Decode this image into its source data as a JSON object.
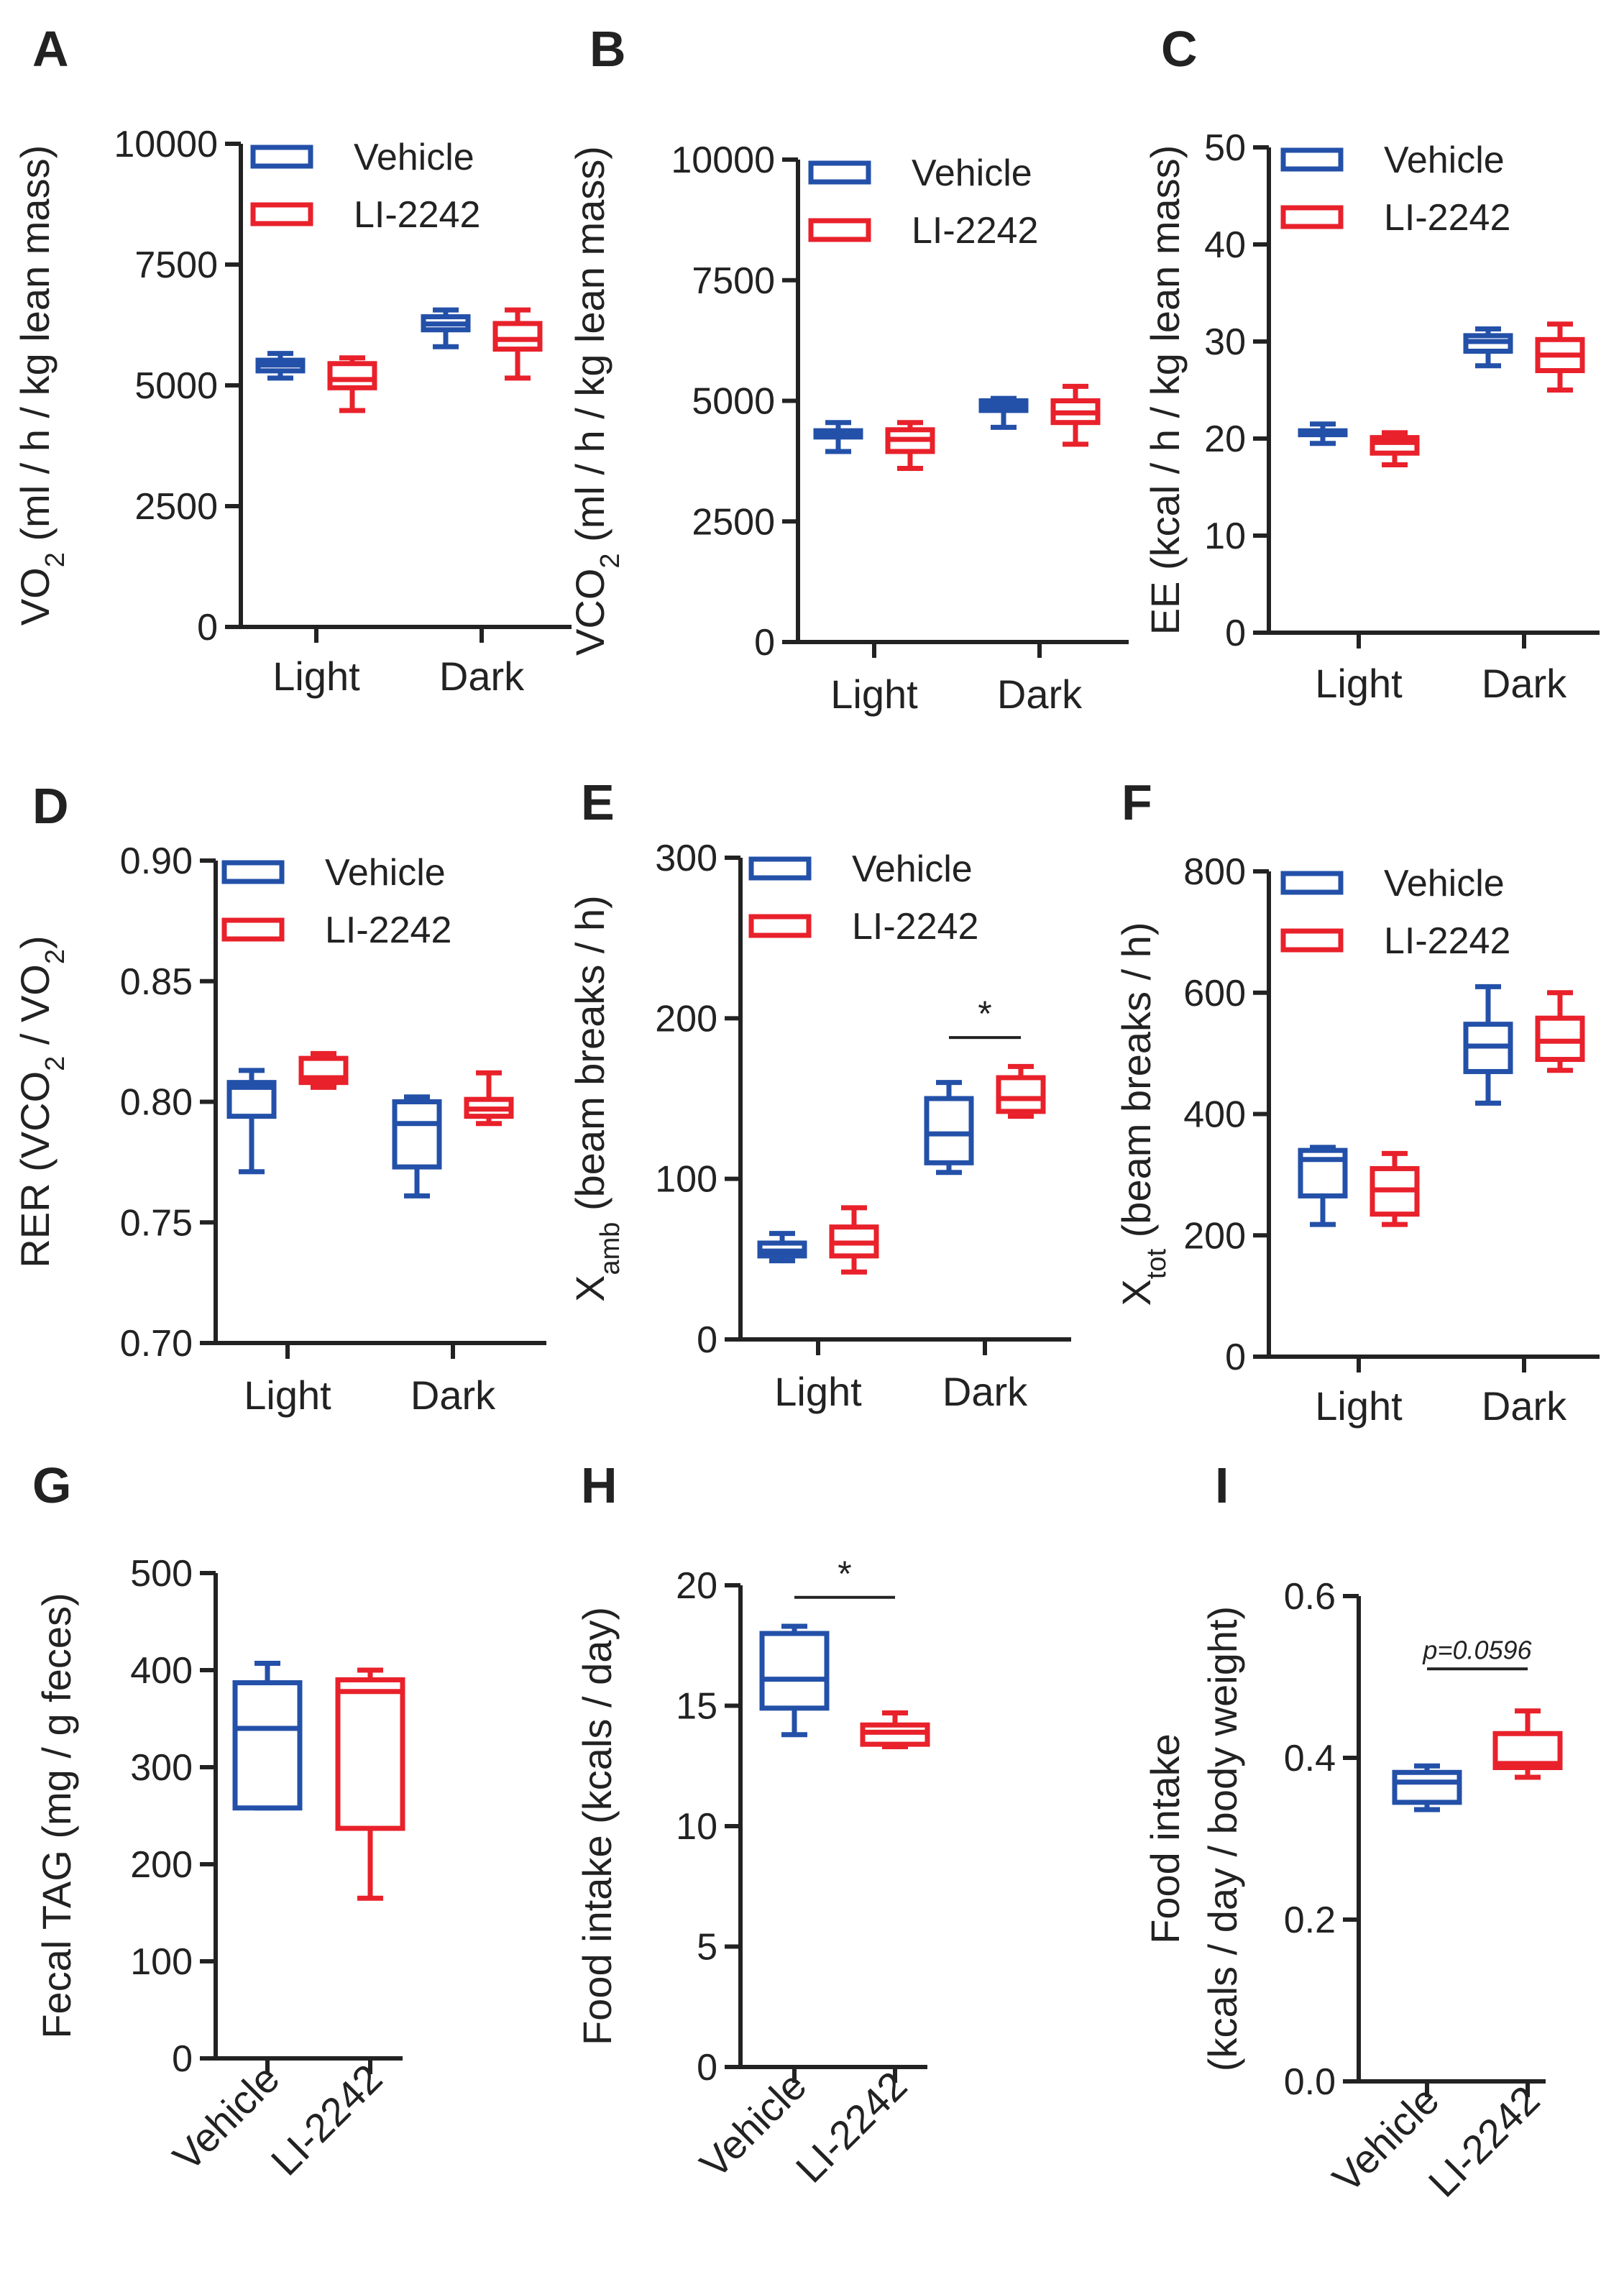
{
  "colors": {
    "vehicle": "#2350A8",
    "li2242": "#E8212B",
    "axis": "#222222"
  },
  "chart_data": [
    {
      "panel": "A",
      "type": "box",
      "ylabel": "VO",
      "ylabel_sub": "2",
      "ylabel_rest": " (ml / h / kg lean mass)",
      "ylim": [
        0,
        10000
      ],
      "yticks": [
        0,
        2500,
        5000,
        7500,
        10000
      ],
      "categories": [
        "Light",
        "Dark"
      ],
      "legend": [
        "Vehicle",
        "LI-2242"
      ],
      "series": [
        {
          "name": "Vehicle",
          "color": "#2350A8",
          "boxes": [
            {
              "min": 5150,
              "q1": 5300,
              "median": 5420,
              "q3": 5520,
              "max": 5660
            },
            {
              "min": 5800,
              "q1": 6150,
              "median": 6270,
              "q3": 6420,
              "max": 6560
            }
          ]
        },
        {
          "name": "LI-2242",
          "color": "#E8212B",
          "boxes": [
            {
              "min": 4480,
              "q1": 4950,
              "median": 5120,
              "q3": 5450,
              "max": 5570
            },
            {
              "min": 5150,
              "q1": 5750,
              "median": 5950,
              "q3": 6280,
              "max": 6560
            }
          ]
        }
      ]
    },
    {
      "panel": "B",
      "type": "box",
      "ylabel": "VCO",
      "ylabel_sub": "2",
      "ylabel_rest": " (ml / h / kg lean mass)",
      "ylim": [
        0,
        10000
      ],
      "yticks": [
        0,
        2500,
        5000,
        7500,
        10000
      ],
      "categories": [
        "Light",
        "Dark"
      ],
      "legend": [
        "Vehicle",
        "LI-2242"
      ],
      "series": [
        {
          "name": "Vehicle",
          "color": "#2350A8",
          "boxes": [
            {
              "min": 3950,
              "q1": 4250,
              "median": 4300,
              "q3": 4380,
              "max": 4550
            },
            {
              "min": 4450,
              "q1": 4800,
              "median": 4900,
              "q3": 5000,
              "max": 5050
            }
          ]
        },
        {
          "name": "LI-2242",
          "color": "#E8212B",
          "boxes": [
            {
              "min": 3600,
              "q1": 3950,
              "median": 4200,
              "q3": 4400,
              "max": 4550
            },
            {
              "min": 4100,
              "q1": 4550,
              "median": 4750,
              "q3": 5000,
              "max": 5300
            }
          ]
        }
      ]
    },
    {
      "panel": "C",
      "type": "box",
      "ylabel": "EE (kcal / h / kg lean mass)",
      "ylim": [
        0,
        50
      ],
      "yticks": [
        0,
        10,
        20,
        30,
        40,
        50
      ],
      "categories": [
        "Light",
        "Dark"
      ],
      "legend": [
        "Vehicle",
        "LI-2242"
      ],
      "series": [
        {
          "name": "Vehicle",
          "color": "#2350A8",
          "boxes": [
            {
              "min": 19.5,
              "q1": 20.4,
              "median": 20.6,
              "q3": 20.8,
              "max": 21.5
            },
            {
              "min": 27.5,
              "q1": 29.0,
              "median": 30.0,
              "q3": 30.6,
              "max": 31.3
            }
          ]
        },
        {
          "name": "LI-2242",
          "color": "#E8212B",
          "boxes": [
            {
              "min": 17.3,
              "q1": 18.5,
              "median": 19.6,
              "q3": 20.1,
              "max": 20.6
            },
            {
              "min": 25.0,
              "q1": 27.0,
              "median": 28.6,
              "q3": 30.2,
              "max": 31.8
            }
          ]
        }
      ]
    },
    {
      "panel": "D",
      "type": "box",
      "ylabel_pre": "RER (VCO",
      "ylabel_sub": "2",
      "ylabel_mid": " / VO",
      "ylabel_sub2": "2",
      "ylabel_end": ")",
      "ylim": [
        0.7,
        0.9
      ],
      "yticks": [
        0.7,
        0.75,
        0.8,
        0.85,
        0.9
      ],
      "ytick_labels": [
        "0.70",
        "0.75",
        "0.80",
        "0.85",
        "0.90"
      ],
      "categories": [
        "Light",
        "Dark"
      ],
      "legend": [
        "Vehicle",
        "LI-2242"
      ],
      "series": [
        {
          "name": "Vehicle",
          "color": "#2350A8",
          "boxes": [
            {
              "min": 0.771,
              "q1": 0.794,
              "median": 0.806,
              "q3": 0.808,
              "max": 0.813
            },
            {
              "min": 0.761,
              "q1": 0.773,
              "median": 0.791,
              "q3": 0.8,
              "max": 0.802
            }
          ]
        },
        {
          "name": "LI-2242",
          "color": "#E8212B",
          "boxes": [
            {
              "min": 0.806,
              "q1": 0.808,
              "median": 0.81,
              "q3": 0.818,
              "max": 0.82
            },
            {
              "min": 0.791,
              "q1": 0.794,
              "median": 0.797,
              "q3": 0.801,
              "max": 0.812
            }
          ]
        }
      ]
    },
    {
      "panel": "E",
      "type": "box",
      "ylabel_pre": "X",
      "ylabel_sub": "amb",
      "ylabel_rest": " (beam breaks / h)",
      "ylim": [
        0,
        300
      ],
      "yticks": [
        0,
        100,
        200,
        300
      ],
      "categories": [
        "Light",
        "Dark"
      ],
      "legend": [
        "Vehicle",
        "LI-2242"
      ],
      "significance": [
        {
          "label": "*",
          "category": "Dark",
          "y": 188
        }
      ],
      "series": [
        {
          "name": "Vehicle",
          "color": "#2350A8",
          "boxes": [
            {
              "min": 49,
              "q1": 52,
              "median": 55,
              "q3": 60,
              "max": 66
            },
            {
              "min": 104,
              "q1": 110,
              "median": 128,
              "q3": 150,
              "max": 160
            }
          ]
        },
        {
          "name": "LI-2242",
          "color": "#E8212B",
          "boxes": [
            {
              "min": 42,
              "q1": 52,
              "median": 60,
              "q3": 70,
              "max": 82
            },
            {
              "min": 139,
              "q1": 142,
              "median": 150,
              "q3": 163,
              "max": 170
            }
          ]
        }
      ]
    },
    {
      "panel": "F",
      "type": "box",
      "ylabel_pre": "X",
      "ylabel_sub": "tot",
      "ylabel_rest": " (beam breaks / h)",
      "ylim": [
        0,
        800
      ],
      "yticks": [
        0,
        200,
        400,
        600,
        800
      ],
      "categories": [
        "Light",
        "Dark"
      ],
      "legend": [
        "Vehicle",
        "LI-2242"
      ],
      "series": [
        {
          "name": "Vehicle",
          "color": "#2350A8",
          "boxes": [
            {
              "min": 218,
              "q1": 265,
              "median": 325,
              "q3": 340,
              "max": 345
            },
            {
              "min": 418,
              "q1": 470,
              "median": 512,
              "q3": 548,
              "max": 610
            }
          ]
        },
        {
          "name": "LI-2242",
          "color": "#E8212B",
          "boxes": [
            {
              "min": 218,
              "q1": 235,
              "median": 275,
              "q3": 310,
              "max": 335
            },
            {
              "min": 472,
              "q1": 490,
              "median": 520,
              "q3": 558,
              "max": 600
            }
          ]
        }
      ]
    },
    {
      "panel": "G",
      "type": "box",
      "ylabel": "Fecal TAG (mg / g feces)",
      "ylim": [
        0,
        500
      ],
      "yticks": [
        0,
        100,
        200,
        300,
        400,
        500
      ],
      "categories": [
        "Vehicle",
        "LI-2242"
      ],
      "series": [
        {
          "name": "Vehicle",
          "color": "#2350A8",
          "boxes": [
            {
              "min": 258,
              "q1": 258,
              "median": 340,
              "q3": 387,
              "max": 407
            }
          ]
        },
        {
          "name": "LI-2242",
          "color": "#E8212B",
          "boxes": [
            {
              "min": 165,
              "q1": 237,
              "median": 378,
              "q3": 390,
              "max": 400
            }
          ]
        }
      ]
    },
    {
      "panel": "H",
      "type": "box",
      "ylabel": "Food intake (kcals / day)",
      "ylim": [
        0,
        20
      ],
      "yticks": [
        0,
        5,
        10,
        15,
        20
      ],
      "categories": [
        "Vehicle",
        "LI-2242"
      ],
      "significance": [
        {
          "label": "*",
          "y": 19.5
        }
      ],
      "series": [
        {
          "name": "Vehicle",
          "color": "#2350A8",
          "boxes": [
            {
              "min": 13.8,
              "q1": 14.9,
              "median": 16.1,
              "q3": 18.0,
              "max": 18.3
            }
          ]
        },
        {
          "name": "LI-2242",
          "color": "#E8212B",
          "boxes": [
            {
              "min": 13.3,
              "q1": 13.4,
              "median": 13.9,
              "q3": 14.2,
              "max": 14.7
            }
          ]
        }
      ]
    },
    {
      "panel": "I",
      "type": "box",
      "ylabel_line1": "Food intake",
      "ylabel_line2": "(kcals / day / body weight)",
      "ylim": [
        0,
        0.6
      ],
      "yticks": [
        0,
        0.2,
        0.4,
        0.6
      ],
      "ytick_labels": [
        "0.0",
        "0.2",
        "0.4",
        "0.6"
      ],
      "categories": [
        "Vehicle",
        "LI-2242"
      ],
      "significance": [
        {
          "label": "p=0.0596",
          "y": 0.51
        }
      ],
      "series": [
        {
          "name": "Vehicle",
          "color": "#2350A8",
          "boxes": [
            {
              "min": 0.336,
              "q1": 0.345,
              "median": 0.37,
              "q3": 0.382,
              "max": 0.39
            }
          ]
        },
        {
          "name": "LI-2242",
          "color": "#E8212B",
          "boxes": [
            {
              "min": 0.376,
              "q1": 0.388,
              "median": 0.393,
              "q3": 0.43,
              "max": 0.458
            }
          ]
        }
      ]
    }
  ]
}
